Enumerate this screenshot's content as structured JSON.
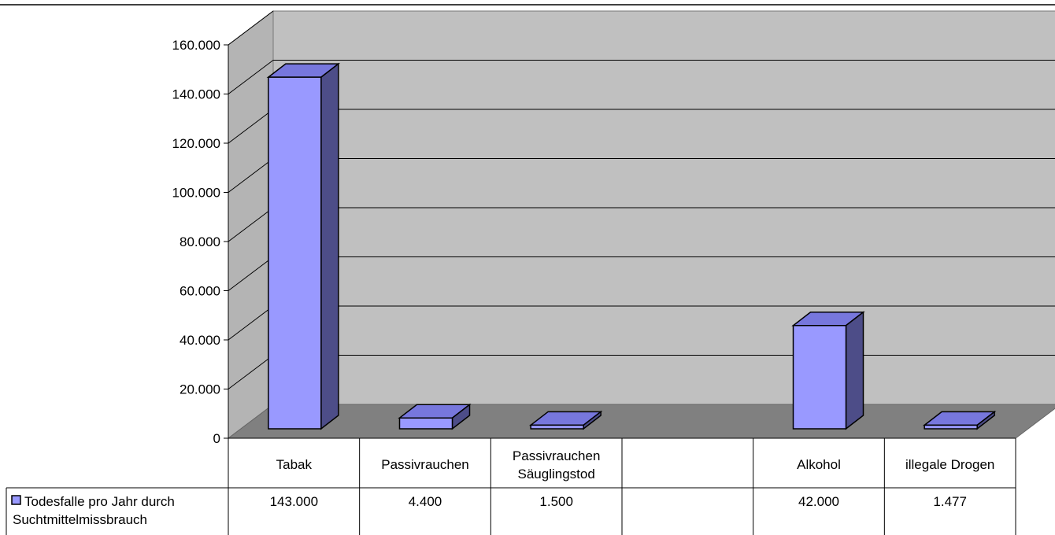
{
  "chart_data": {
    "type": "bar",
    "three_d": true,
    "categories": [
      [
        "Tabak"
      ],
      [
        "Passivrauchen"
      ],
      [
        "Passivrauchen",
        "Säuglingstod"
      ],
      [
        ""
      ],
      [
        "Alkohol"
      ],
      [
        "illegale Drogen"
      ]
    ],
    "series": [
      {
        "name": [
          "Todesfalle pro Jahr durch",
          "Suchtmittelmissbrauch"
        ],
        "values": [
          143000,
          4400,
          1500,
          null,
          42000,
          1477
        ],
        "value_labels": [
          "143.000",
          "4.400",
          "1.500",
          "",
          "42.000",
          "1.477"
        ]
      }
    ],
    "ylim": [
      0,
      160000
    ],
    "yticks": [
      0,
      20000,
      40000,
      60000,
      80000,
      100000,
      120000,
      140000,
      160000
    ],
    "ytick_labels": [
      "0",
      "20.000",
      "40.000",
      "60.000",
      "80.000",
      "100.000",
      "120.000",
      "140.000",
      "160.000"
    ],
    "grid": true,
    "legend": "data-table",
    "colors": {
      "bar_front": "#9999ff",
      "bar_top": "#7777dd",
      "bar_side": "#4d4d88",
      "back_wall": "#c0c0c0",
      "side_wall": "#b4b4b4",
      "floor": "#808080"
    }
  }
}
